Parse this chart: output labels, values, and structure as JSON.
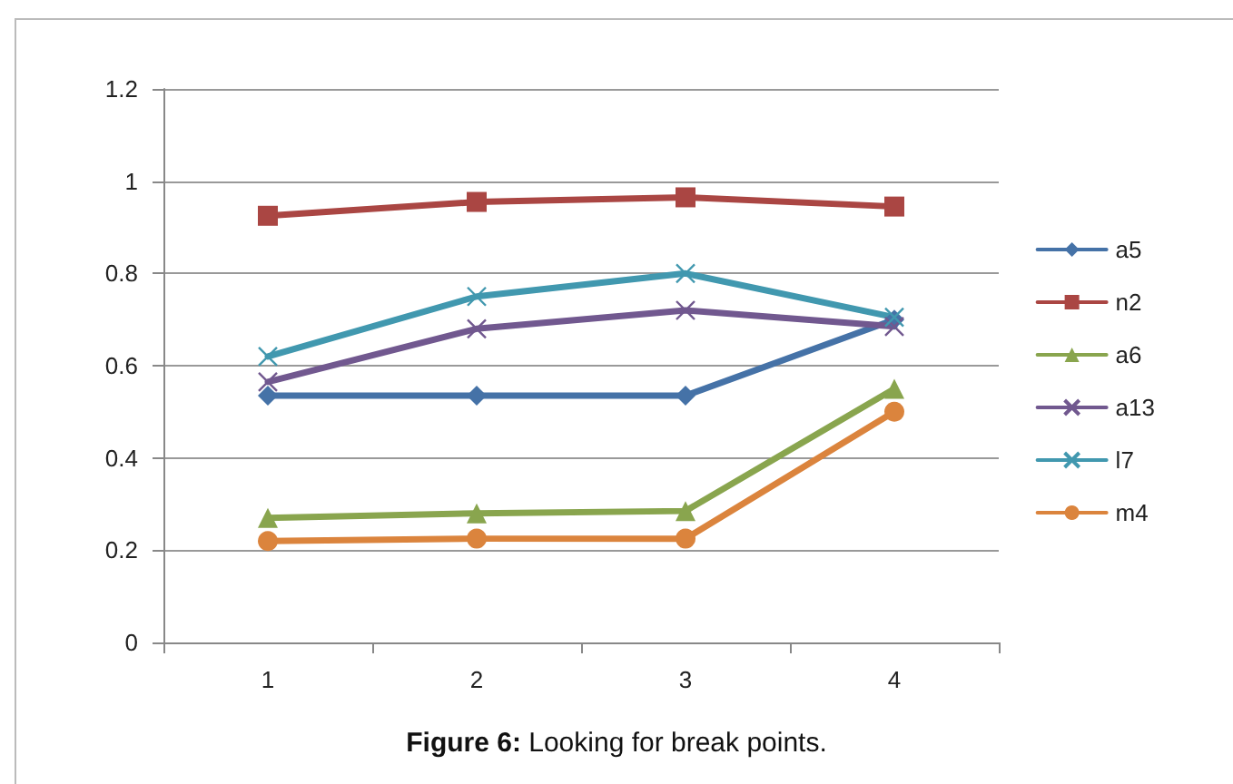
{
  "chart_data": {
    "type": "line",
    "title": "Figure 6: Looking for break points.",
    "categories": [
      "1",
      "2",
      "3",
      "4"
    ],
    "series": [
      {
        "name": "a5",
        "color": "#4572a7",
        "marker": "diamond",
        "values": [
          0.535,
          0.535,
          0.535,
          0.7
        ]
      },
      {
        "name": "n2",
        "color": "#aa4643",
        "marker": "square",
        "values": [
          0.925,
          0.955,
          0.965,
          0.945
        ]
      },
      {
        "name": "a6",
        "color": "#89a54e",
        "marker": "triangle",
        "values": [
          0.27,
          0.28,
          0.285,
          0.55
        ]
      },
      {
        "name": "a13",
        "color": "#71588f",
        "marker": "cross",
        "values": [
          0.565,
          0.68,
          0.72,
          0.685
        ]
      },
      {
        "name": "l7",
        "color": "#4198af",
        "marker": "cross",
        "values": [
          0.62,
          0.75,
          0.8,
          0.705
        ]
      },
      {
        "name": "m4",
        "color": "#db843d",
        "marker": "circle",
        "values": [
          0.22,
          0.225,
          0.225,
          0.5
        ]
      }
    ],
    "ylim": [
      0,
      1.2
    ],
    "yticks": [
      0,
      0.2,
      0.4,
      0.6,
      0.8,
      1,
      1.2
    ],
    "grid": "y",
    "legend": "right",
    "line_style": "solid"
  }
}
